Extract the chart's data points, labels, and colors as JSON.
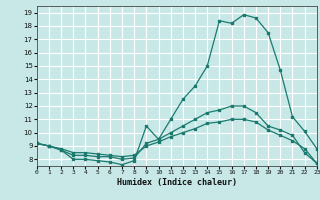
{
  "title": "",
  "xlabel": "Humidex (Indice chaleur)",
  "background_color": "#c8e8e8",
  "grid_color": "#ffffff",
  "line_color": "#1a7a6e",
  "xmin": 0,
  "xmax": 23,
  "ymin": 7.5,
  "ymax": 19.5,
  "x_ticks": [
    0,
    1,
    2,
    3,
    4,
    5,
    6,
    7,
    8,
    9,
    10,
    11,
    12,
    13,
    14,
    15,
    16,
    17,
    18,
    19,
    20,
    21,
    22,
    23
  ],
  "y_ticks": [
    8,
    9,
    10,
    11,
    12,
    13,
    14,
    15,
    16,
    17,
    18,
    19
  ],
  "series": [
    {
      "x": [
        0,
        1,
        2,
        3,
        4,
        5,
        6,
        7,
        8,
        9,
        10,
        11,
        12,
        13,
        14,
        15,
        16,
        17,
        18,
        19,
        20,
        21,
        22,
        23
      ],
      "y": [
        9.2,
        9.0,
        8.7,
        8.0,
        8.0,
        7.9,
        7.8,
        7.6,
        7.9,
        10.5,
        9.5,
        11.0,
        12.5,
        13.5,
        15.0,
        18.4,
        18.2,
        18.85,
        18.6,
        17.5,
        14.7,
        11.2,
        10.1,
        8.8
      ]
    },
    {
      "x": [
        0,
        1,
        2,
        3,
        4,
        5,
        6,
        7,
        8,
        9,
        10,
        11,
        12,
        13,
        14,
        15,
        16,
        17,
        18,
        19,
        20,
        21,
        22,
        23
      ],
      "y": [
        9.2,
        9.0,
        8.7,
        8.3,
        8.3,
        8.2,
        8.2,
        8.0,
        8.1,
        9.2,
        9.5,
        10.0,
        10.5,
        11.0,
        11.5,
        11.7,
        12.0,
        12.0,
        11.5,
        10.5,
        10.2,
        9.8,
        8.5,
        7.7
      ]
    },
    {
      "x": [
        0,
        1,
        2,
        3,
        4,
        5,
        6,
        7,
        8,
        9,
        10,
        11,
        12,
        13,
        14,
        15,
        16,
        17,
        18,
        19,
        20,
        21,
        22,
        23
      ],
      "y": [
        9.2,
        9.0,
        8.8,
        8.5,
        8.5,
        8.4,
        8.3,
        8.2,
        8.3,
        9.0,
        9.3,
        9.7,
        10.0,
        10.3,
        10.7,
        10.8,
        11.0,
        11.0,
        10.8,
        10.2,
        9.8,
        9.4,
        8.8,
        7.7
      ]
    }
  ]
}
